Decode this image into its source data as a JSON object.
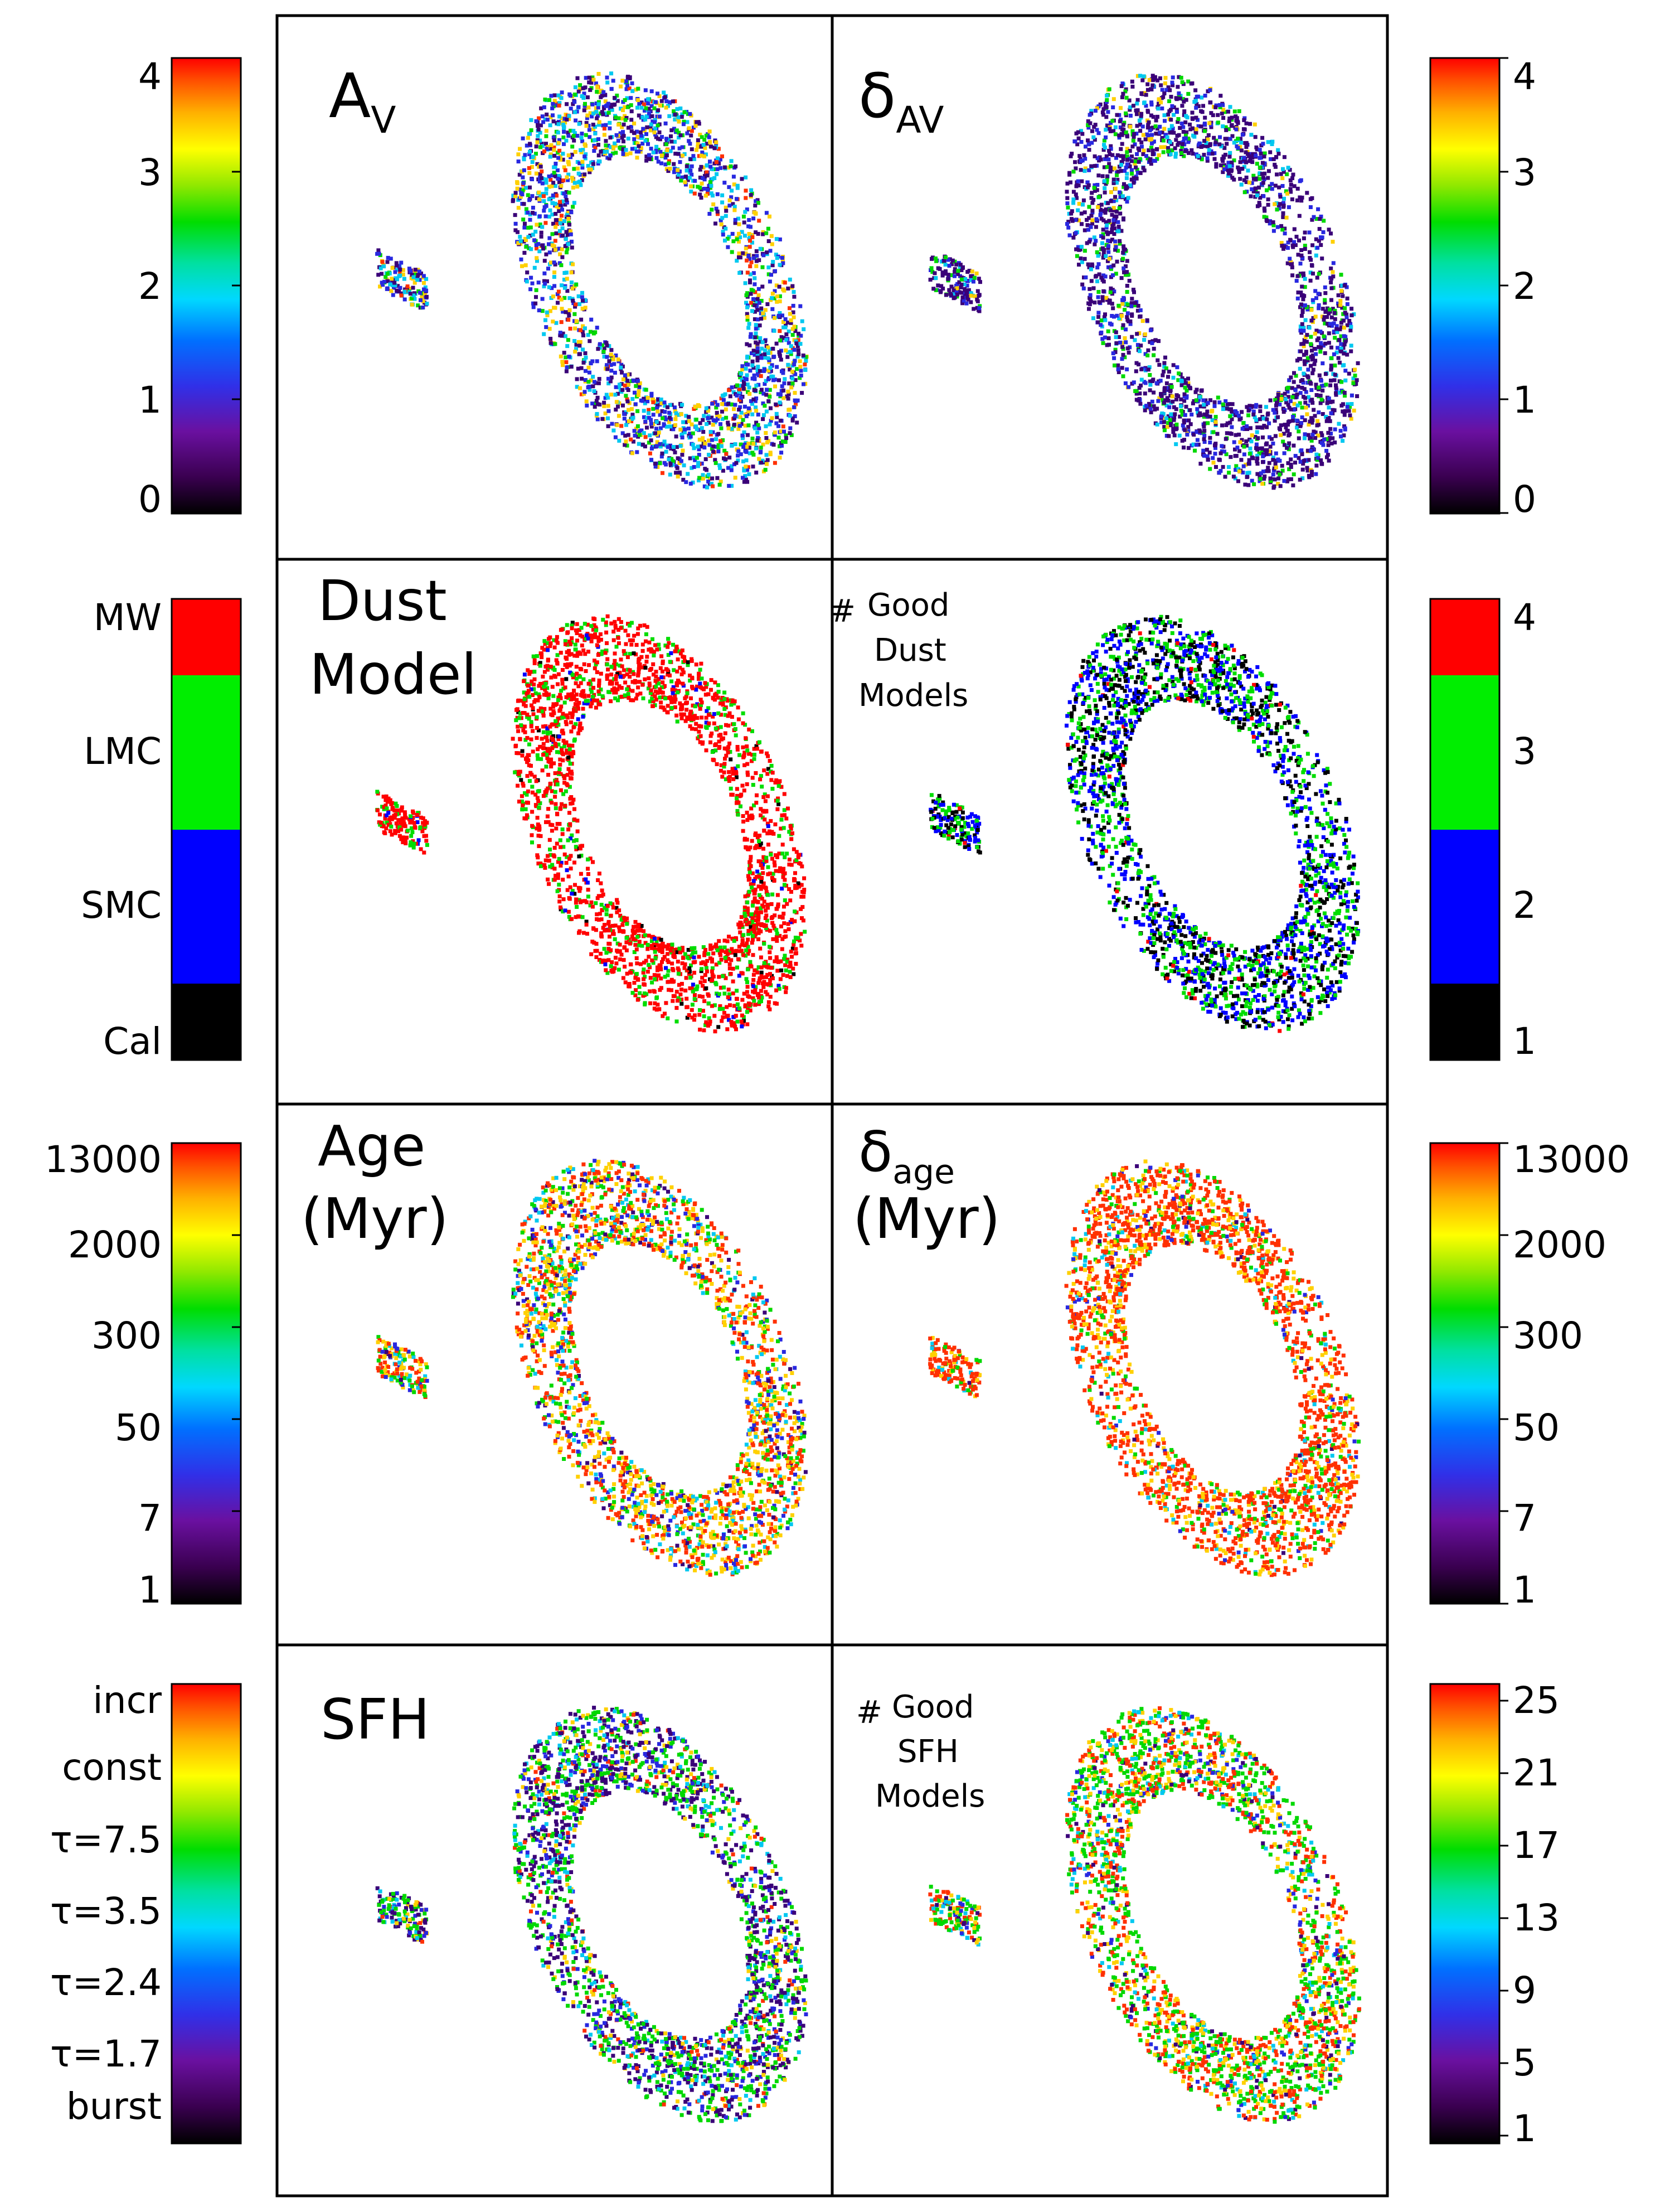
{
  "rows": [
    {
      "left_label": [
        "A",
        "V"
      ],
      "right_label": [
        "δ",
        "AV"
      ],
      "left_colorbar": {
        "type": "gradient",
        "ticks": [
          "4",
          "3",
          "2",
          "1",
          "0"
        ]
      },
      "right_colorbar": {
        "type": "gradient",
        "ticks": [
          "4",
          "3",
          "2",
          "1",
          "0"
        ]
      },
      "left_map": {
        "palette": "rainbow",
        "weights": [
          0.25,
          0.25,
          0.2,
          0.1,
          0.15,
          0.05
        ]
      },
      "right_map": {
        "palette": "rainbow",
        "weights": [
          0.55,
          0.2,
          0.1,
          0.1,
          0.05,
          0.0
        ]
      }
    },
    {
      "left_label": [
        "Dust",
        "Model"
      ],
      "right_label": [
        "#",
        "Good",
        "Dust",
        "Models"
      ],
      "left_colorbar": {
        "type": "discrete",
        "ticks": [
          "MW",
          "LMC",
          "SMC",
          "Cal"
        ],
        "colors": [
          "#ff0000",
          "#00ee00",
          "#0000ff",
          "#000000"
        ]
      },
      "right_colorbar": {
        "type": "discrete",
        "ticks": [
          "4",
          "3",
          "2",
          "1"
        ],
        "colors": [
          "#ff0000",
          "#00ee00",
          "#0000ff",
          "#000000"
        ]
      },
      "left_map": {
        "palette": "dust",
        "weights": [
          0.75,
          0.2,
          0.03,
          0.02
        ]
      },
      "right_map": {
        "palette": "dust",
        "weights": [
          0.02,
          0.3,
          0.38,
          0.3
        ]
      }
    },
    {
      "left_label": [
        "Age",
        "(Myr)"
      ],
      "right_label": [
        "δ",
        "age",
        "(Myr)"
      ],
      "left_colorbar": {
        "type": "gradient",
        "ticks": [
          "13000",
          "2000",
          "300",
          "50",
          "7",
          "1"
        ]
      },
      "right_colorbar": {
        "type": "gradient",
        "ticks": [
          "13000",
          "2000",
          "300",
          "50",
          "7",
          "1"
        ]
      },
      "left_map": {
        "palette": "rainbow",
        "weights": [
          0.05,
          0.1,
          0.1,
          0.15,
          0.3,
          0.3
        ]
      },
      "right_map": {
        "palette": "rainbow",
        "weights": [
          0.02,
          0.03,
          0.05,
          0.1,
          0.2,
          0.6
        ]
      }
    },
    {
      "left_label": [
        "SFH"
      ],
      "right_label": [
        "#",
        "Good",
        "SFH",
        "Models"
      ],
      "left_colorbar": {
        "type": "gradient",
        "ticks": [
          "incr",
          "const",
          "τ=7.5",
          "τ=3.5",
          "τ=2.4",
          "τ=1.7",
          "burst"
        ]
      },
      "right_colorbar": {
        "type": "gradient",
        "ticks": [
          "25",
          "21",
          "17",
          "13",
          "9",
          "5",
          "1"
        ]
      },
      "left_map": {
        "palette": "rainbow",
        "weights": [
          0.3,
          0.15,
          0.1,
          0.3,
          0.1,
          0.05
        ]
      },
      "right_map": {
        "palette": "rainbow",
        "weights": [
          0.05,
          0.05,
          0.1,
          0.35,
          0.2,
          0.25
        ]
      }
    }
  ]
}
